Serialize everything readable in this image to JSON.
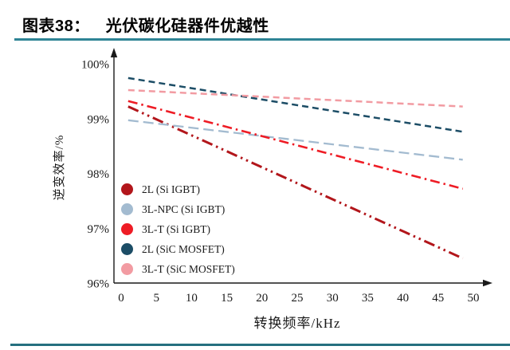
{
  "header": {
    "label": "图表38：",
    "title": "光伏碳化硅器件优越性"
  },
  "colors": {
    "header_rule": "#2E8495",
    "bottom_rule": "#25707F",
    "axis": "#1a1a1a"
  },
  "chart_data": {
    "type": "line",
    "title": "光伏碳化硅器件优越性",
    "xlabel": "转换频率/kHz",
    "ylabel": "逆变效率/%",
    "xlim": [
      0,
      52
    ],
    "ylim": [
      96,
      100
    ],
    "x_ticks": [
      0,
      5,
      10,
      15,
      20,
      25,
      30,
      35,
      40,
      45,
      50
    ],
    "y_ticks": [
      100,
      99,
      98,
      97,
      96
    ],
    "y_tick_suffix": "%",
    "grid": false,
    "legend_position": "inside-left-middle",
    "x": [
      1,
      48.5
    ],
    "series": [
      {
        "name": "2L (Si IGBT)",
        "color": "#B2161B",
        "style": "dash-dot-dot",
        "values": [
          99.22,
          96.45
        ]
      },
      {
        "name": "3L-NPC (Si IGBT)",
        "color": "#A3BBD0",
        "style": "long-dash",
        "values": [
          98.97,
          98.25
        ]
      },
      {
        "name": "3L-T (Si IGBT)",
        "color": "#EE1C25",
        "style": "dash-dot",
        "values": [
          99.32,
          97.72
        ]
      },
      {
        "name": "2L (SiC MOSFET)",
        "color": "#1C4D66",
        "style": "dash",
        "values": [
          99.74,
          98.76
        ]
      },
      {
        "name": "3L-T (SiC MOSFET)",
        "color": "#F29BA2",
        "style": "dash",
        "values": [
          99.52,
          99.22
        ]
      }
    ]
  }
}
